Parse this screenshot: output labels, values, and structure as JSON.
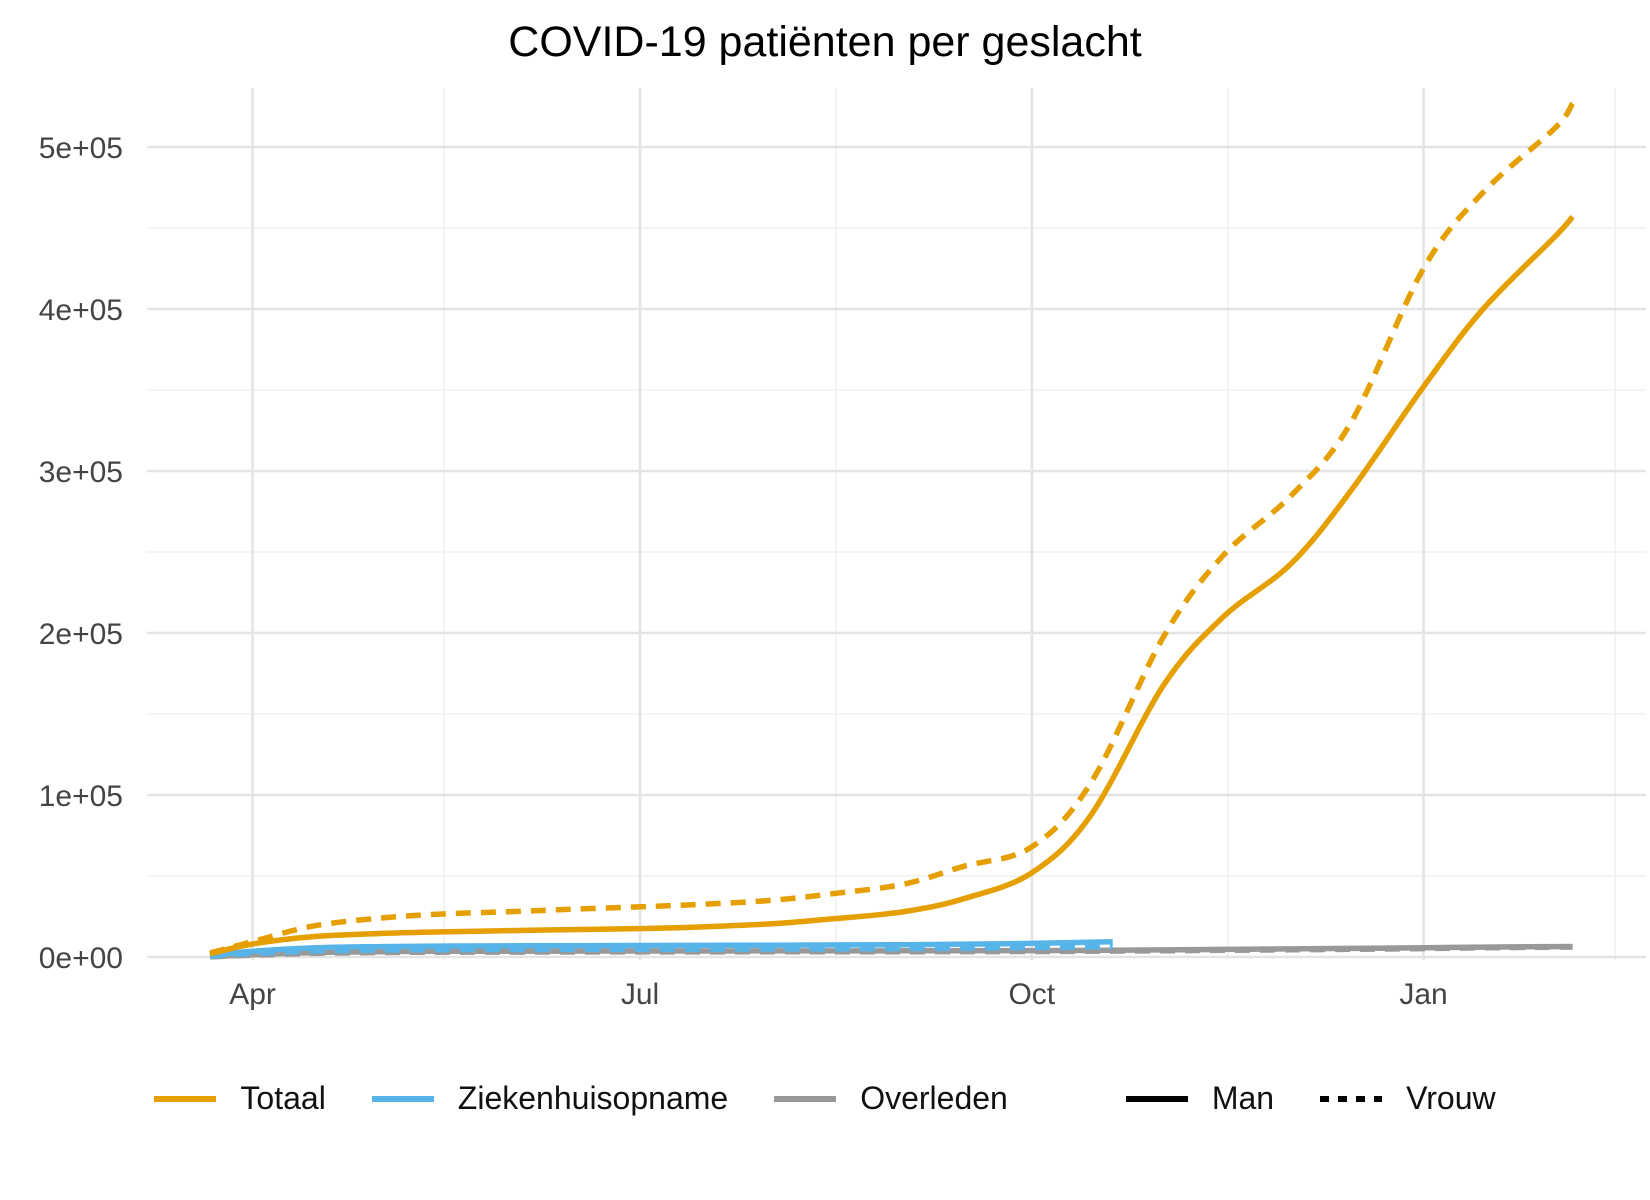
{
  "title": "COVID-19 patiënten per geslacht",
  "colors": {
    "totaal": "#E69F00",
    "ziekenhuisopname": "#56B4E9",
    "overleden": "#999999",
    "linetype_key": "#000000",
    "grid_major": "#E4E4E4",
    "grid_minor": "#F0F0F0",
    "axis_text": "#444444",
    "background": "#FFFFFF"
  },
  "legend": {
    "color_items": [
      {
        "label": "Totaal",
        "color": "#E69F00"
      },
      {
        "label": "Ziekenhuisopname",
        "color": "#56B4E9"
      },
      {
        "label": "Overleden",
        "color": "#999999"
      }
    ],
    "linetype_items": [
      {
        "label": "Man",
        "linetype": "solid"
      },
      {
        "label": "Vrouw",
        "linetype": "dashed"
      }
    ]
  },
  "chart_data": {
    "type": "line",
    "title": "COVID-19 patiënten per geslacht",
    "xlabel": "",
    "ylabel": "",
    "grid": true,
    "legend_position": "bottom",
    "x_axis": {
      "domain": [
        "2020-03-22",
        "2021-02-05"
      ],
      "tick_dates": [
        "2020-04-01",
        "2020-07-01",
        "2020-10-01",
        "2021-01-01"
      ],
      "tick_labels": [
        "Apr",
        "Jul",
        "Oct",
        "Jan"
      ],
      "minor_dates": [
        "2020-05-16",
        "2020-08-16",
        "2020-11-16",
        "2021-02-15"
      ]
    },
    "y_axis": {
      "ylim": [
        0,
        535000
      ],
      "tick_values": [
        0,
        100000,
        200000,
        300000,
        400000,
        500000
      ],
      "tick_labels": [
        "0e+00",
        "1e+05",
        "2e+05",
        "3e+05",
        "4e+05",
        "5e+05"
      ],
      "minor_values": [
        50000,
        150000,
        250000,
        350000,
        450000
      ]
    },
    "series": [
      {
        "name": "Overleden Man",
        "group": "Overleden",
        "geslacht": "Man",
        "color": "#999999",
        "linetype": "solid",
        "points": [
          [
            "2020-03-22",
            150
          ],
          [
            "2020-04-01",
            1400
          ],
          [
            "2020-04-15",
            2700
          ],
          [
            "2020-05-01",
            3300
          ],
          [
            "2020-05-15",
            3500
          ],
          [
            "2020-06-01",
            3600
          ],
          [
            "2020-07-01",
            3700
          ],
          [
            "2020-08-01",
            3750
          ],
          [
            "2020-09-01",
            3800
          ],
          [
            "2020-10-01",
            3950
          ],
          [
            "2020-10-15",
            4100
          ],
          [
            "2020-11-01",
            4400
          ],
          [
            "2020-11-15",
            4700
          ],
          [
            "2020-12-01",
            5000
          ],
          [
            "2020-12-15",
            5300
          ],
          [
            "2021-01-01",
            5700
          ],
          [
            "2021-01-15",
            6100
          ],
          [
            "2021-02-01",
            6400
          ],
          [
            "2021-02-05",
            6500
          ]
        ]
      },
      {
        "name": "Overleden Vrouw",
        "group": "Overleden",
        "geslacht": "Vrouw",
        "color": "#999999",
        "linetype": "dashed",
        "points": [
          [
            "2020-03-22",
            100
          ],
          [
            "2020-04-01",
            1100
          ],
          [
            "2020-04-15",
            2200
          ],
          [
            "2020-05-01",
            2750
          ],
          [
            "2020-05-15",
            2950
          ],
          [
            "2020-06-01",
            3050
          ],
          [
            "2020-07-01",
            3150
          ],
          [
            "2020-08-01",
            3200
          ],
          [
            "2020-09-01",
            3250
          ],
          [
            "2020-10-01",
            3400
          ],
          [
            "2020-10-15",
            3550
          ],
          [
            "2020-11-01",
            3850
          ],
          [
            "2020-11-15",
            4150
          ],
          [
            "2020-12-01",
            4450
          ],
          [
            "2020-12-15",
            4750
          ],
          [
            "2021-01-01",
            5200
          ],
          [
            "2021-01-15",
            5700
          ],
          [
            "2021-02-01",
            6050
          ],
          [
            "2021-02-05",
            6150
          ]
        ]
      },
      {
        "name": "Ziekenhuisopname Man",
        "group": "Ziekenhuisopname",
        "geslacht": "Man",
        "color": "#56B4E9",
        "linetype": "solid",
        "points": [
          [
            "2020-03-22",
            800
          ],
          [
            "2020-04-01",
            3500
          ],
          [
            "2020-04-15",
            5600
          ],
          [
            "2020-05-01",
            6400
          ],
          [
            "2020-05-15",
            6700
          ],
          [
            "2020-06-01",
            6900
          ],
          [
            "2020-07-01",
            7100
          ],
          [
            "2020-08-01",
            7300
          ],
          [
            "2020-09-01",
            7600
          ],
          [
            "2020-10-01",
            8400
          ],
          [
            "2020-10-20",
            9400
          ]
        ]
      },
      {
        "name": "Ziekenhuisopname Vrouw",
        "group": "Ziekenhuisopname",
        "geslacht": "Vrouw",
        "color": "#56B4E9",
        "linetype": "dashed",
        "points": [
          [
            "2020-03-22",
            500
          ],
          [
            "2020-04-01",
            2200
          ],
          [
            "2020-04-15",
            3700
          ],
          [
            "2020-05-01",
            4300
          ],
          [
            "2020-05-15",
            4500
          ],
          [
            "2020-06-01",
            4650
          ],
          [
            "2020-07-01",
            4800
          ],
          [
            "2020-08-01",
            4950
          ],
          [
            "2020-09-01",
            5200
          ],
          [
            "2020-10-01",
            5800
          ],
          [
            "2020-10-20",
            6500
          ]
        ]
      },
      {
        "name": "Totaal Man",
        "group": "Totaal",
        "geslacht": "Man",
        "color": "#E69F00",
        "linetype": "solid",
        "points": [
          [
            "2020-03-22",
            2000
          ],
          [
            "2020-04-01",
            8000
          ],
          [
            "2020-04-15",
            12500
          ],
          [
            "2020-05-01",
            14500
          ],
          [
            "2020-05-15",
            15500
          ],
          [
            "2020-06-01",
            16300
          ],
          [
            "2020-06-15",
            16900
          ],
          [
            "2020-07-01",
            17500
          ],
          [
            "2020-07-15",
            18500
          ],
          [
            "2020-08-01",
            20500
          ],
          [
            "2020-08-15",
            23500
          ],
          [
            "2020-09-01",
            28000
          ],
          [
            "2020-09-15",
            36000
          ],
          [
            "2020-10-01",
            52000
          ],
          [
            "2020-10-15",
            88000
          ],
          [
            "2020-11-01",
            168000
          ],
          [
            "2020-11-15",
            210000
          ],
          [
            "2020-12-01",
            243000
          ],
          [
            "2020-12-15",
            288000
          ],
          [
            "2021-01-01",
            352000
          ],
          [
            "2021-01-15",
            400000
          ],
          [
            "2021-02-01",
            445000
          ],
          [
            "2021-02-05",
            457000
          ]
        ]
      },
      {
        "name": "Totaal Vrouw",
        "group": "Totaal",
        "geslacht": "Vrouw",
        "color": "#E69F00",
        "linetype": "dashed",
        "points": [
          [
            "2020-03-22",
            2500
          ],
          [
            "2020-04-01",
            9500
          ],
          [
            "2020-04-15",
            19000
          ],
          [
            "2020-05-01",
            24000
          ],
          [
            "2020-05-15",
            26500
          ],
          [
            "2020-06-01",
            28000
          ],
          [
            "2020-06-15",
            29500
          ],
          [
            "2020-07-01",
            31000
          ],
          [
            "2020-07-15",
            32500
          ],
          [
            "2020-08-01",
            35000
          ],
          [
            "2020-08-15",
            39000
          ],
          [
            "2020-09-01",
            45000
          ],
          [
            "2020-09-15",
            56000
          ],
          [
            "2020-10-01",
            68000
          ],
          [
            "2020-10-15",
            108000
          ],
          [
            "2020-11-01",
            198000
          ],
          [
            "2020-11-15",
            248000
          ],
          [
            "2020-12-01",
            285000
          ],
          [
            "2020-12-15",
            330000
          ],
          [
            "2021-01-01",
            425000
          ],
          [
            "2021-01-15",
            472000
          ],
          [
            "2021-02-01",
            512000
          ],
          [
            "2021-02-05",
            527000
          ]
        ]
      }
    ]
  }
}
